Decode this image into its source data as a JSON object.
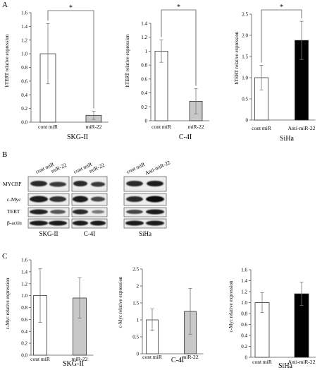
{
  "panel_a": {
    "label": "A",
    "charts": [
      {
        "ylabel": "hTERT relative expression",
        "categories": [
          "cont miR",
          "miR-22"
        ],
        "cell_line": "SKG-II",
        "significance": "*",
        "yticks": [
          "0.0",
          "0.2",
          "0.4",
          "0.6",
          "0.8",
          "1.0",
          "1.2",
          "1.4",
          "1.6"
        ]
      },
      {
        "ylabel": "hTERT relative expression",
        "categories": [
          "cont miR",
          "miR-22"
        ],
        "cell_line": "C-4I",
        "significance": "*",
        "yticks": [
          "0",
          "0.2",
          "0.4",
          "0.6",
          "0.8",
          "1",
          "1.2",
          "1.4"
        ]
      },
      {
        "ylabel": "hTERT relative expression",
        "categories": [
          "cont miR",
          "Anti-miR-22"
        ],
        "cell_line": "SiHa",
        "significance": "*",
        "yticks": [
          "0",
          "0.5",
          "1.0",
          "1.5",
          "2.0",
          "2.5"
        ]
      }
    ]
  },
  "panel_b": {
    "label": "B",
    "row_labels": [
      "MYCBP",
      "c-Myc",
      "TERT",
      "β-actin"
    ],
    "groups": [
      {
        "lanes": [
          "cont miR",
          "miR-22"
        ],
        "cell_line": "SKG-II"
      },
      {
        "lanes": [
          "cont miR",
          "miR-22"
        ],
        "cell_line": "C-4I"
      },
      {
        "lanes": [
          "cont miR",
          "Anti-miR-22"
        ],
        "cell_line": "SiHa"
      }
    ]
  },
  "panel_c": {
    "label": "C",
    "charts": [
      {
        "ylabel": "c-Myc relative expression",
        "categories": [
          "cont miR",
          "miR-22"
        ],
        "cell_line": "SKG-II",
        "yticks": [
          "0.0",
          "0.2",
          "0.4",
          "0.6",
          "0.8",
          "1.0",
          "1.2",
          "1.4",
          "1.6"
        ]
      },
      {
        "ylabel": "c-Myc relative expression",
        "categories": [
          "cont miR",
          "miR-22"
        ],
        "cell_line": "C-4I",
        "yticks": [
          "0",
          "0.5",
          "1",
          "1.5",
          "2",
          "2.5"
        ]
      },
      {
        "ylabel": "c-Myc relative expression",
        "categories": [
          "cont miR",
          "Anti-miR-22"
        ],
        "cell_line": "SiHa",
        "yticks": [
          "0",
          "0.2",
          "0.4",
          "0.6",
          "0.8",
          "1.0",
          "1.2",
          "1.4",
          "1.6"
        ]
      }
    ]
  },
  "chart_data": [
    {
      "type": "bar",
      "ylabel": "hTERT relative expression",
      "categories": [
        "cont miR",
        "miR-22"
      ],
      "xlabel": "SKG-II",
      "values": [
        1.0,
        0.1
      ],
      "errors": [
        0.44,
        0.06
      ],
      "ylim": [
        0,
        1.6
      ],
      "annotations": [
        "*"
      ],
      "colors": [
        "#ffffff",
        "#c8c8c8"
      ]
    },
    {
      "type": "bar",
      "ylabel": "hTERT relative expression",
      "categories": [
        "cont miR",
        "miR-22"
      ],
      "xlabel": "C-4I",
      "values": [
        1.0,
        0.28
      ],
      "errors": [
        0.16,
        0.18
      ],
      "ylim": [
        0,
        1.4
      ],
      "annotations": [
        "*"
      ],
      "colors": [
        "#ffffff",
        "#c8c8c8"
      ]
    },
    {
      "type": "bar",
      "ylabel": "hTERT relative expression",
      "categories": [
        "cont miR",
        "Anti-miR-22"
      ],
      "xlabel": "SiHa",
      "values": [
        1.0,
        1.88
      ],
      "errors": [
        0.29,
        0.45
      ],
      "ylim": [
        0,
        2.5
      ],
      "annotations": [
        "*"
      ],
      "colors": [
        "#ffffff",
        "#000000"
      ]
    },
    {
      "type": "bar",
      "ylabel": "c-Myc relative expression",
      "categories": [
        "cont miR",
        "miR-22"
      ],
      "xlabel": "SKG-II",
      "values": [
        1.0,
        0.96
      ],
      "errors": [
        0.45,
        0.34
      ],
      "ylim": [
        0,
        1.6
      ],
      "colors": [
        "#ffffff",
        "#c8c8c8"
      ]
    },
    {
      "type": "bar",
      "ylabel": "c-Myc relative expression",
      "categories": [
        "cont miR",
        "miR-22"
      ],
      "xlabel": "C-4I",
      "values": [
        1.0,
        1.25
      ],
      "errors": [
        0.32,
        0.68
      ],
      "ylim": [
        0,
        2.5
      ],
      "colors": [
        "#ffffff",
        "#c8c8c8"
      ]
    },
    {
      "type": "bar",
      "ylabel": "c-Myc relative expression",
      "categories": [
        "cont miR",
        "Anti-miR-22"
      ],
      "xlabel": "SiHa",
      "values": [
        1.0,
        1.16
      ],
      "errors": [
        0.18,
        0.21
      ],
      "ylim": [
        0,
        1.6
      ],
      "colors": [
        "#ffffff",
        "#000000"
      ]
    }
  ]
}
